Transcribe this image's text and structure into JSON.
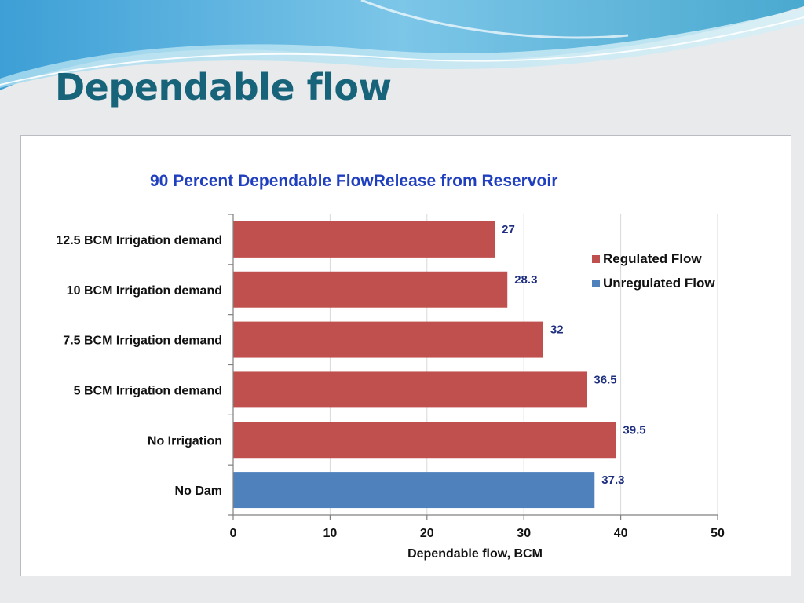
{
  "slide": {
    "title": "Dependable flow"
  },
  "chart_data": {
    "type": "bar",
    "orientation": "horizontal",
    "title": "90 Percent Dependable FlowRelease from Reservoir",
    "xlabel": "Dependable flow, BCM",
    "ylabel": "",
    "xlim": [
      0,
      50
    ],
    "xticks": [
      0,
      10,
      20,
      30,
      40,
      50
    ],
    "grid": true,
    "legend_position": "right",
    "categories": [
      "12.5 BCM Irrigation demand",
      "10 BCM Irrigation demand",
      "7.5 BCM Irrigation demand",
      "5 BCM Irrigation demand",
      "No Irrigation",
      "No Dam"
    ],
    "values": [
      27,
      28.3,
      32,
      36.5,
      39.5,
      37.3
    ],
    "value_labels": [
      "27",
      "28.3",
      "32",
      "36.5",
      "39.5",
      "37.3"
    ],
    "bar_series": [
      "Regulated Flow",
      "Regulated Flow",
      "Regulated Flow",
      "Regulated Flow",
      "Regulated Flow",
      "Unregulated Flow"
    ],
    "series": [
      {
        "name": "Regulated Flow",
        "color": "#c0504d"
      },
      {
        "name": "Unregulated Flow",
        "color": "#4f81bd"
      }
    ]
  },
  "colors": {
    "title": "#17647a",
    "chart_title": "#1f3fbf",
    "data_label": "#1f2f80",
    "background": "#e9eaec"
  }
}
